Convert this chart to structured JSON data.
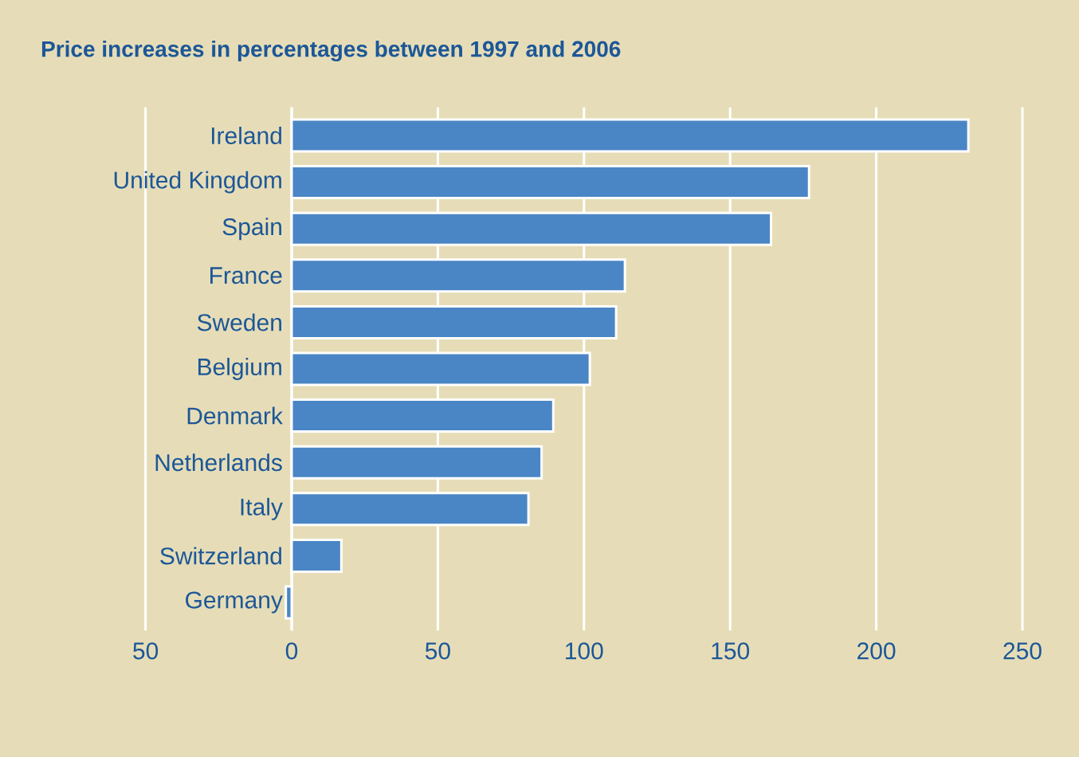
{
  "chart_data": {
    "type": "bar",
    "orientation": "horizontal",
    "title": "Price increases in percentages between 1997 and 2006",
    "categories": [
      "Ireland",
      "United Kingdom",
      "Spain",
      "France",
      "Sweden",
      "Belgium",
      "Denmark",
      "Netherlands",
      "Italy",
      "Switzerland",
      "Germany"
    ],
    "values": [
      231.5,
      177,
      164,
      114,
      111,
      102,
      89.5,
      85.5,
      81,
      17,
      -2
    ],
    "color": "#4a86c5",
    "xlim": [
      -50,
      250
    ],
    "xticks": [
      {
        "value": -50,
        "label": "50"
      },
      0,
      50,
      100,
      150,
      200,
      250
    ],
    "grid": "x"
  }
}
